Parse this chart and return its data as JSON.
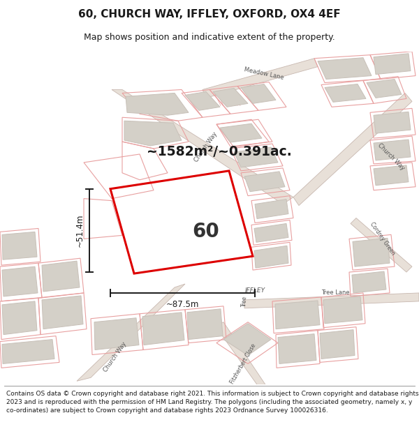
{
  "title": "60, CHURCH WAY, IFFLEY, OXFORD, OX4 4EF",
  "subtitle": "Map shows position and indicative extent of the property.",
  "footer": "Contains OS data © Crown copyright and database right 2021. This information is subject to Crown copyright and database rights 2023 and is reproduced with the permission of HM Land Registry. The polygons (including the associated geometry, namely x, y co-ordinates) are subject to Crown copyright and database rights 2023 Ordnance Survey 100026316.",
  "area_label": "~1582m²/~0.391ac.",
  "plot_number": "60",
  "dim_width": "~87.5m",
  "dim_height": "~51.4m",
  "title_color": "#1a1a1a",
  "footer_color": "#1a1a1a",
  "map_bg": "#ffffff",
  "plot_line_color": "#e8a0a0",
  "building_fill": "#d4d0c8",
  "road_fill": "#e8e0d8",
  "red_poly_color": "#dd0000",
  "dim_color": "#1a1a1a",
  "label_color": "#555555",
  "area_label_color": "#1a1a1a"
}
